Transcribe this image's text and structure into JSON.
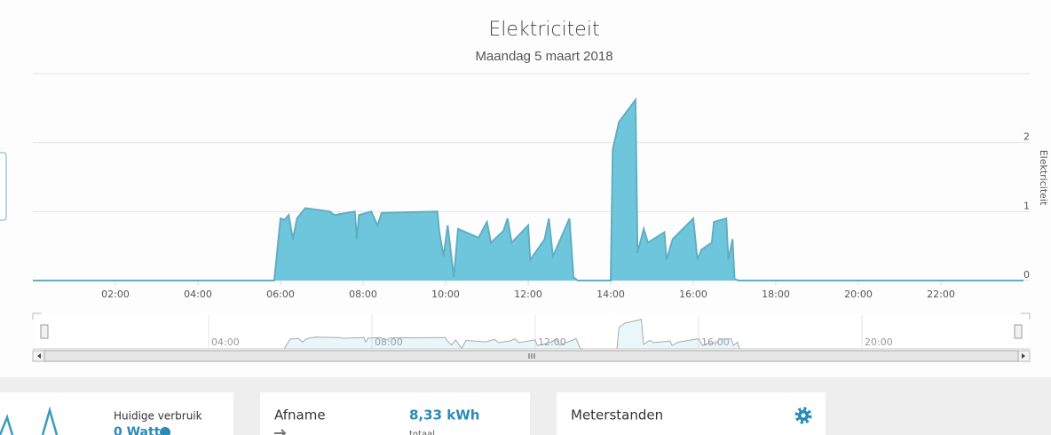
{
  "chart_data": {
    "type": "area",
    "title": "Elektriciteit",
    "subtitle": "Maandag 5 maart 2018",
    "y_label": "Elektriciteit",
    "color": "#6ec6dc",
    "x": [
      0,
      5.85,
      6.0,
      6.1,
      6.2,
      6.3,
      6.4,
      6.6,
      7.2,
      7.3,
      7.8,
      7.85,
      7.9,
      8.2,
      8.35,
      8.45,
      9.8,
      9.85,
      9.95,
      10.05,
      10.2,
      10.3,
      10.8,
      11.0,
      11.1,
      11.4,
      11.5,
      11.6,
      12.0,
      12.05,
      12.4,
      12.5,
      12.6,
      13.0,
      13.1,
      13.2,
      14.0,
      14.05,
      14.2,
      14.6,
      14.65,
      14.8,
      14.9,
      15.3,
      15.35,
      15.5,
      16.0,
      16.1,
      16.2,
      16.45,
      16.5,
      16.8,
      16.85,
      16.95,
      17.0,
      17.1,
      24
    ],
    "values": [
      0,
      0,
      0.9,
      0.88,
      0.95,
      0.6,
      0.9,
      1.05,
      1.0,
      0.95,
      1.0,
      0.6,
      0.95,
      1.0,
      0.8,
      0.98,
      1.0,
      0.7,
      0.35,
      0.8,
      0.05,
      0.75,
      0.62,
      0.85,
      0.55,
      0.72,
      0.9,
      0.55,
      0.8,
      0.3,
      0.6,
      0.9,
      0.35,
      0.9,
      0.05,
      0,
      0,
      1.9,
      2.3,
      2.62,
      0.4,
      0.75,
      0.55,
      0.7,
      0.3,
      0.6,
      0.9,
      0.3,
      0.45,
      0.55,
      0.85,
      0.9,
      0.3,
      0.6,
      0.02,
      0,
      0
    ],
    "xlim": [
      0,
      24
    ],
    "xticks": [
      {
        "value": 2,
        "label": "02:00"
      },
      {
        "value": 4,
        "label": "04:00"
      },
      {
        "value": 6,
        "label": "06:00"
      },
      {
        "value": 8,
        "label": "08:00"
      },
      {
        "value": 10,
        "label": "10:00"
      },
      {
        "value": 12,
        "label": "12:00"
      },
      {
        "value": 14,
        "label": "14:00"
      },
      {
        "value": 16,
        "label": "16:00"
      },
      {
        "value": 18,
        "label": "18:00"
      },
      {
        "value": 20,
        "label": "20:00"
      },
      {
        "value": 22,
        "label": "22:00"
      }
    ],
    "ylim": [
      0,
      3
    ],
    "yticks": [
      0,
      1,
      2
    ],
    "grid": true
  },
  "panels": {
    "current": {
      "label": "Huidige verbruik",
      "value": "0 Watt"
    },
    "usage": {
      "title": "Afname",
      "value": "8,33 kWh",
      "note": "totaal"
    },
    "meters": {
      "title": "Meterstanden"
    }
  }
}
